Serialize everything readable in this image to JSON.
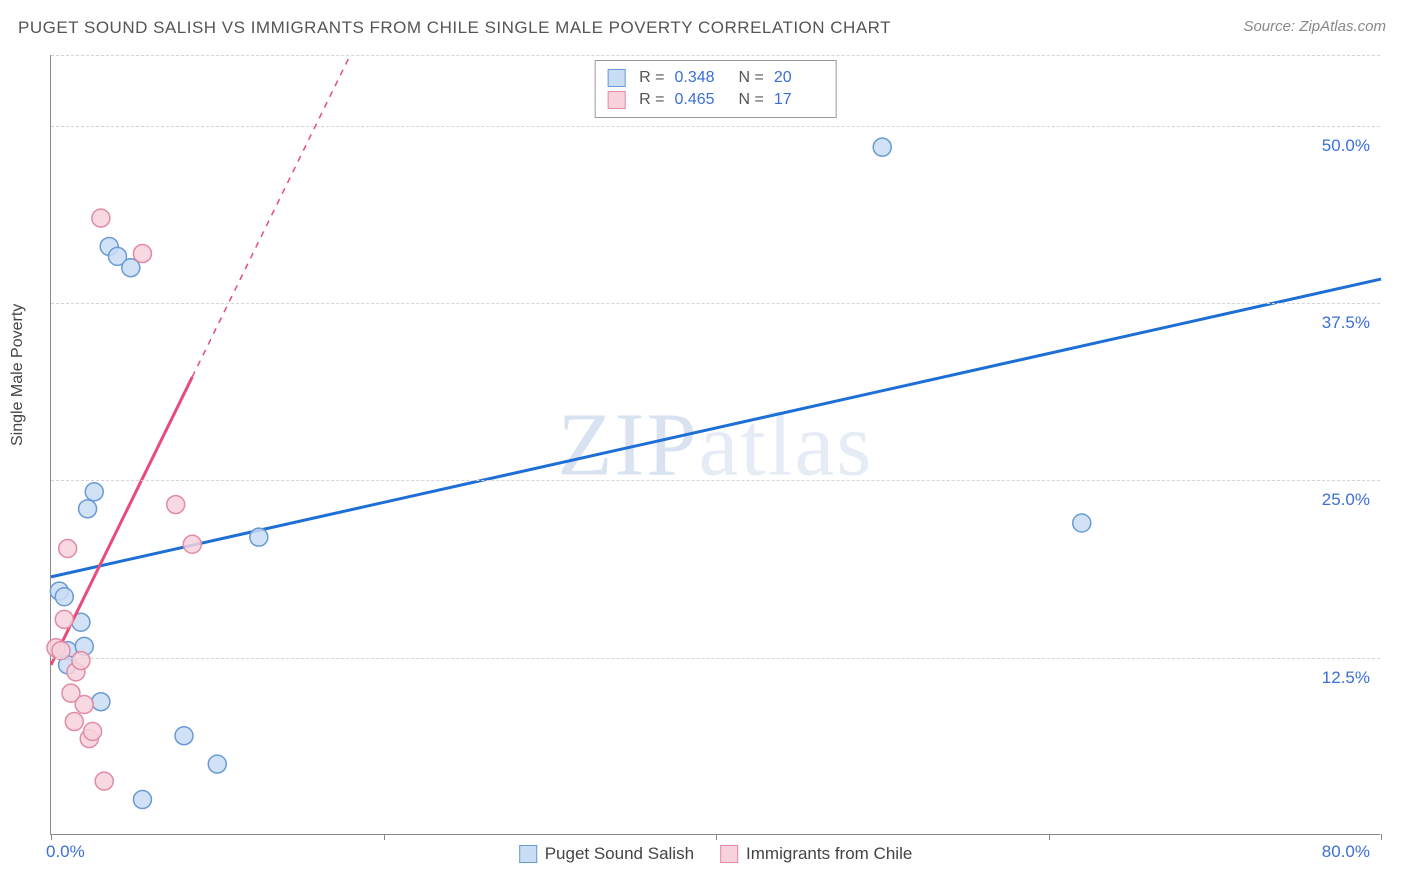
{
  "title": "PUGET SOUND SALISH VS IMMIGRANTS FROM CHILE SINGLE MALE POVERTY CORRELATION CHART",
  "source": "Source: ZipAtlas.com",
  "y_axis_label": "Single Male Poverty",
  "watermark": {
    "part1": "ZIP",
    "part2": "atlas"
  },
  "chart": {
    "type": "scatter",
    "xlim": [
      0,
      80
    ],
    "ylim": [
      0,
      55
    ],
    "x_ticks": [
      0,
      20,
      40,
      60,
      80
    ],
    "x_tick_labels": [
      "0.0%",
      "",
      "",
      "",
      "80.0%"
    ],
    "y_ticks": [
      12.5,
      25.0,
      37.5,
      50.0,
      55.0
    ],
    "y_tick_labels": [
      "12.5%",
      "25.0%",
      "37.5%",
      "50.0%",
      ""
    ],
    "grid_color": "#d5d5d5",
    "background_color": "#ffffff",
    "axis_color": "#888888",
    "tick_label_color": "#3b6fd6",
    "series": [
      {
        "name": "Puget Sound Salish",
        "color_fill": "#c9ddf5",
        "color_stroke": "#6a9ad4",
        "trend_color": "#1d6fd6",
        "R": "0.348",
        "N": "20",
        "marker_radius": 9,
        "trend": {
          "x1": 0,
          "y1": 18.2,
          "x2": 80,
          "y2": 39.2,
          "dashed_after_x": null
        },
        "points": [
          [
            0.5,
            17.2
          ],
          [
            0.8,
            16.8
          ],
          [
            1.0,
            13.0
          ],
          [
            1.0,
            12.0
          ],
          [
            1.8,
            15.0
          ],
          [
            2.0,
            13.3
          ],
          [
            2.2,
            23.0
          ],
          [
            2.6,
            24.2
          ],
          [
            3.0,
            9.4
          ],
          [
            3.5,
            41.5
          ],
          [
            4.0,
            40.8
          ],
          [
            4.8,
            40.0
          ],
          [
            5.5,
            2.5
          ],
          [
            8.0,
            7.0
          ],
          [
            10.0,
            5.0
          ],
          [
            12.5,
            21.0
          ],
          [
            50.0,
            48.5
          ],
          [
            62.0,
            22.0
          ]
        ]
      },
      {
        "name": "Immigrants from Chile",
        "color_fill": "#f7d2dc",
        "color_stroke": "#e28aa4",
        "trend_color": "#e94b7a",
        "R": "0.465",
        "N": "17",
        "marker_radius": 9,
        "trend": {
          "x1": 0,
          "y1": 12.0,
          "x2": 18.0,
          "y2": 55.0,
          "dashed_after_x": 8.5
        },
        "points": [
          [
            0.3,
            13.2
          ],
          [
            0.6,
            13.0
          ],
          [
            0.8,
            15.2
          ],
          [
            1.0,
            20.2
          ],
          [
            1.2,
            10.0
          ],
          [
            1.4,
            8.0
          ],
          [
            1.5,
            11.5
          ],
          [
            1.8,
            12.3
          ],
          [
            2.0,
            9.2
          ],
          [
            2.3,
            6.8
          ],
          [
            2.5,
            7.3
          ],
          [
            3.0,
            43.5
          ],
          [
            3.2,
            3.8
          ],
          [
            5.5,
            41.0
          ],
          [
            7.5,
            23.3
          ],
          [
            8.5,
            20.5
          ]
        ]
      }
    ]
  },
  "legend_bottom": [
    {
      "label": "Puget Sound Salish",
      "fill": "#c9ddf5",
      "stroke": "#6a9ad4"
    },
    {
      "label": "Immigrants from Chile",
      "fill": "#f7d2dc",
      "stroke": "#e28aa4"
    }
  ]
}
